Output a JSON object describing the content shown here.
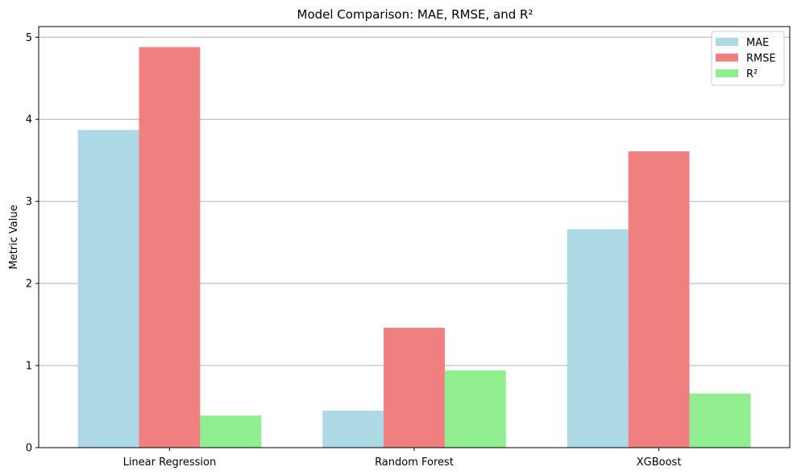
{
  "chart_data": {
    "type": "bar",
    "title": "Model Comparison: MAE, RMSE, and R²",
    "xlabel": "",
    "ylabel": "Metric Value",
    "categories": [
      "Linear Regression",
      "Random Forest",
      "XGBoost"
    ],
    "series": [
      {
        "name": "MAE",
        "values": [
          3.87,
          0.45,
          2.66
        ],
        "color": "#add8e6"
      },
      {
        "name": "RMSE",
        "values": [
          4.88,
          1.46,
          3.61
        ],
        "color": "#f08080"
      },
      {
        "name": "R²",
        "values": [
          0.39,
          0.94,
          0.66
        ],
        "color": "#90ee90"
      }
    ],
    "ylim": [
      0,
      5.13
    ],
    "yticks": [
      "0",
      "1",
      "2",
      "3",
      "4",
      "5"
    ],
    "grid": "y",
    "legend_position": "top-right"
  }
}
